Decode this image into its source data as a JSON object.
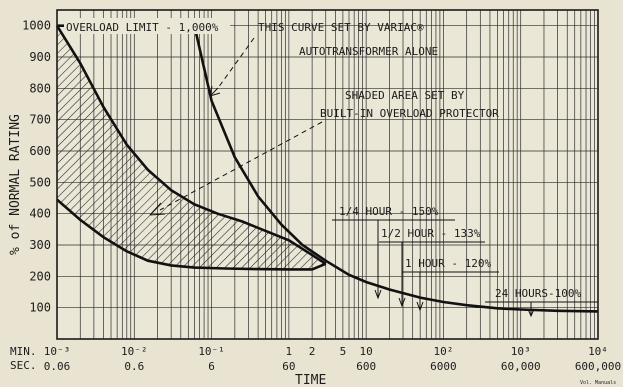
{
  "chart_data": {
    "type": "line",
    "xlabel": "TIME",
    "ylabel": "% of NORMAL RATING",
    "x_scale": "log",
    "x_unit": "hours",
    "xlim": [
      0.001,
      10000
    ],
    "ylim": [
      0,
      1050
    ],
    "grid": true,
    "y_ticks": [
      100,
      200,
      300,
      400,
      500,
      600,
      700,
      800,
      900,
      1000
    ],
    "x_axis_label_rows": {
      "row1_label": "MIN.",
      "row2_label": "SEC.",
      "ticks": [
        {
          "x": 0.001,
          "top": "10⁻³",
          "bottom": "0.06"
        },
        {
          "x": 0.01,
          "top": "10⁻²",
          "bottom": "0.6"
        },
        {
          "x": 0.1,
          "top": "10⁻¹",
          "bottom": "6"
        },
        {
          "x": 1,
          "top": "1",
          "bottom": "60"
        },
        {
          "x": 2,
          "top": "2",
          "bottom": ""
        },
        {
          "x": 5,
          "top": "5",
          "bottom": ""
        },
        {
          "x": 10,
          "top": "10",
          "bottom": "600"
        },
        {
          "x": 100,
          "top": "10²",
          "bottom": "6000"
        },
        {
          "x": 1000,
          "top": "10³",
          "bottom": "60,000"
        },
        {
          "x": 10000,
          "top": "10⁴",
          "bottom": "600,000"
        }
      ]
    },
    "series": [
      {
        "key": "variac",
        "x": [
          0.001,
          0.06,
          0.1,
          0.2,
          0.4,
          0.8,
          1.5,
          3,
          6,
          10,
          20,
          50,
          100,
          200,
          500,
          1000,
          3000,
          10000
        ],
        "values": [
          1000,
          1000,
          760,
          580,
          455,
          365,
          300,
          250,
          205,
          182,
          158,
          132,
          118,
          108,
          98,
          94,
          90,
          88
        ]
      },
      {
        "key": "protector-upper",
        "x": [
          0.001,
          0.002,
          0.004,
          0.008,
          0.015,
          0.03,
          0.06,
          0.12,
          0.25,
          0.5,
          1,
          2,
          3
        ],
        "values": [
          1000,
          880,
          740,
          620,
          540,
          475,
          430,
          400,
          375,
          345,
          315,
          268,
          240
        ]
      },
      {
        "key": "protector-lower",
        "x": [
          0.001,
          0.002,
          0.004,
          0.008,
          0.015,
          0.03,
          0.06,
          0.15,
          0.4,
          1,
          2,
          3
        ],
        "values": [
          445,
          380,
          325,
          280,
          250,
          235,
          228,
          225,
          223,
          222,
          222,
          240
        ]
      }
    ],
    "annotations": [
      {
        "id": "overload",
        "text": "OVERLOAD LIMIT - 1,000%"
      },
      {
        "id": "variac-curve-1",
        "text": "THIS CURVE SET BY VARIAC®"
      },
      {
        "id": "variac-curve-2",
        "text": "AUTOTRANSFORMER ALONE"
      },
      {
        "id": "shaded-1",
        "text": "SHADED AREA SET BY"
      },
      {
        "id": "shaded-2",
        "text": "BUILT-IN OVERLOAD PROTECTOR"
      },
      {
        "id": "quarter",
        "text": "1/4 HOUR - 150%",
        "x": 15,
        "y": 150
      },
      {
        "id": "half",
        "text": "1/2 HOUR - 133%",
        "x": 30,
        "y": 133
      },
      {
        "id": "one",
        "text": "1 HOUR - 120%",
        "x": 50,
        "y": 120
      },
      {
        "id": "day",
        "text": "24 HOURS-100%",
        "x": 1000,
        "y": 100
      }
    ],
    "credit": "Vol. Manuals"
  }
}
